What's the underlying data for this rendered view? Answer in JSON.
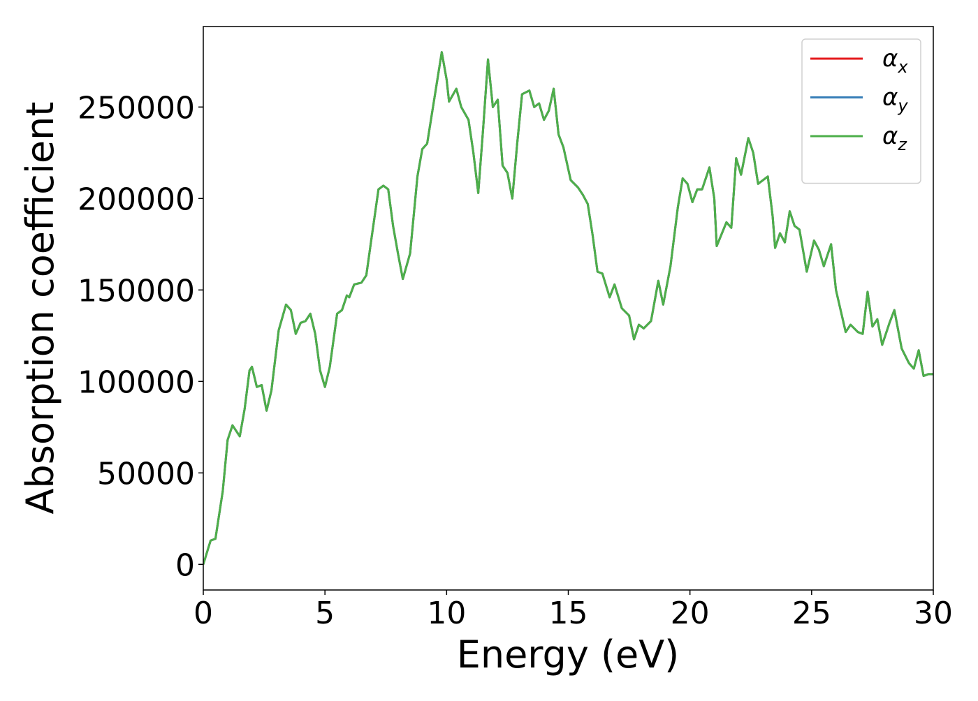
{
  "chart_data": {
    "type": "line",
    "xlabel": "Energy (eV)",
    "ylabel": "Absorption coefficient",
    "x": [
      0,
      0.3,
      0.5,
      0.8,
      1.0,
      1.2,
      1.5,
      1.7,
      1.9,
      2.0,
      2.2,
      2.4,
      2.6,
      2.8,
      3.1,
      3.4,
      3.6,
      3.8,
      4.0,
      4.2,
      4.4,
      4.6,
      4.8,
      5.0,
      5.2,
      5.5,
      5.7,
      5.9,
      6.0,
      6.2,
      6.5,
      6.7,
      6.9,
      7.2,
      7.4,
      7.6,
      7.8,
      8.0,
      8.2,
      8.5,
      8.8,
      9.0,
      9.2,
      9.5,
      9.8,
      10.0,
      10.1,
      10.4,
      10.6,
      10.9,
      11.1,
      11.3,
      11.5,
      11.7,
      11.9,
      12.1,
      12.3,
      12.5,
      12.7,
      12.9,
      13.1,
      13.4,
      13.6,
      13.8,
      14.0,
      14.2,
      14.4,
      14.6,
      14.8,
      15.1,
      15.4,
      15.6,
      15.8,
      16.0,
      16.2,
      16.4,
      16.7,
      16.9,
      17.2,
      17.5,
      17.7,
      17.9,
      18.1,
      18.4,
      18.7,
      18.9,
      19.2,
      19.5,
      19.7,
      19.9,
      20.1,
      20.3,
      20.5,
      20.8,
      21.0,
      21.1,
      21.5,
      21.7,
      21.9,
      22.1,
      22.4,
      22.6,
      22.8,
      23.0,
      23.2,
      23.4,
      23.5,
      23.7,
      23.9,
      24.1,
      24.3,
      24.5,
      24.8,
      25.1,
      25.3,
      25.5,
      25.8,
      26.0,
      26.4,
      26.6,
      26.9,
      27.1,
      27.3,
      27.5,
      27.7,
      27.9,
      28.2,
      28.4,
      28.7,
      29.0,
      29.2,
      29.4,
      29.6,
      29.8,
      30.0
    ],
    "series": [
      {
        "name": "αx",
        "color": "#e41a1c",
        "values": [
          0,
          13000,
          14000,
          40000,
          68000,
          76000,
          70000,
          85000,
          106000,
          108000,
          97000,
          98000,
          84000,
          95000,
          128000,
          142000,
          139000,
          126000,
          132000,
          133000,
          137000,
          126000,
          106000,
          97000,
          108000,
          137000,
          139000,
          147000,
          146000,
          153000,
          154000,
          158000,
          177000,
          205000,
          207000,
          205000,
          185000,
          170000,
          156000,
          170000,
          212000,
          227000,
          230000,
          255000,
          280000,
          265000,
          253000,
          260000,
          250000,
          243000,
          225000,
          203000,
          238000,
          276000,
          250000,
          254000,
          218000,
          214000,
          200000,
          230000,
          257000,
          259000,
          250000,
          252000,
          243000,
          248000,
          260000,
          235000,
          228000,
          210000,
          206000,
          202000,
          197000,
          180000,
          160000,
          159000,
          146000,
          153000,
          140000,
          136000,
          123000,
          131000,
          129000,
          133000,
          155000,
          142000,
          163000,
          195000,
          211000,
          208000,
          198000,
          205000,
          205000,
          217000,
          200000,
          174000,
          187000,
          184000,
          222000,
          213000,
          233000,
          225000,
          208000,
          210000,
          212000,
          190000,
          173000,
          181000,
          176000,
          193000,
          185000,
          183000,
          160000,
          177000,
          172000,
          163000,
          175000,
          150000,
          127000,
          131000,
          127000,
          126000,
          149000,
          130000,
          134000,
          120000,
          132000,
          139000,
          118000,
          110000,
          107000,
          117000,
          103000,
          104000,
          104000
        ]
      },
      {
        "name": "αy",
        "color": "#377eb8",
        "values": [
          0,
          13000,
          14000,
          40000,
          68000,
          76000,
          70000,
          85000,
          106000,
          108000,
          97000,
          98000,
          84000,
          95000,
          128000,
          142000,
          139000,
          126000,
          132000,
          133000,
          137000,
          126000,
          106000,
          97000,
          108000,
          137000,
          139000,
          147000,
          146000,
          153000,
          154000,
          158000,
          177000,
          205000,
          207000,
          205000,
          185000,
          170000,
          156000,
          170000,
          212000,
          227000,
          230000,
          255000,
          280000,
          265000,
          253000,
          260000,
          250000,
          243000,
          225000,
          203000,
          238000,
          276000,
          250000,
          254000,
          218000,
          214000,
          200000,
          230000,
          257000,
          259000,
          250000,
          252000,
          243000,
          248000,
          260000,
          235000,
          228000,
          210000,
          206000,
          202000,
          197000,
          180000,
          160000,
          159000,
          146000,
          153000,
          140000,
          136000,
          123000,
          131000,
          129000,
          133000,
          155000,
          142000,
          163000,
          195000,
          211000,
          208000,
          198000,
          205000,
          205000,
          217000,
          200000,
          174000,
          187000,
          184000,
          222000,
          213000,
          233000,
          225000,
          208000,
          210000,
          212000,
          190000,
          173000,
          181000,
          176000,
          193000,
          185000,
          183000,
          160000,
          177000,
          172000,
          163000,
          175000,
          150000,
          127000,
          131000,
          127000,
          126000,
          149000,
          130000,
          134000,
          120000,
          132000,
          139000,
          118000,
          110000,
          107000,
          117000,
          103000,
          104000,
          104000
        ]
      },
      {
        "name": "αz",
        "color": "#4daf4a",
        "values": [
          0,
          13000,
          14000,
          40000,
          68000,
          76000,
          70000,
          85000,
          106000,
          108000,
          97000,
          98000,
          84000,
          95000,
          128000,
          142000,
          139000,
          126000,
          132000,
          133000,
          137000,
          126000,
          106000,
          97000,
          108000,
          137000,
          139000,
          147000,
          146000,
          153000,
          154000,
          158000,
          177000,
          205000,
          207000,
          205000,
          185000,
          170000,
          156000,
          170000,
          212000,
          227000,
          230000,
          255000,
          280000,
          265000,
          253000,
          260000,
          250000,
          243000,
          225000,
          203000,
          238000,
          276000,
          250000,
          254000,
          218000,
          214000,
          200000,
          230000,
          257000,
          259000,
          250000,
          252000,
          243000,
          248000,
          260000,
          235000,
          228000,
          210000,
          206000,
          202000,
          197000,
          180000,
          160000,
          159000,
          146000,
          153000,
          140000,
          136000,
          123000,
          131000,
          129000,
          133000,
          155000,
          142000,
          163000,
          195000,
          211000,
          208000,
          198000,
          205000,
          205000,
          217000,
          200000,
          174000,
          187000,
          184000,
          222000,
          213000,
          233000,
          225000,
          208000,
          210000,
          212000,
          190000,
          173000,
          181000,
          176000,
          193000,
          185000,
          183000,
          160000,
          177000,
          172000,
          163000,
          175000,
          150000,
          127000,
          131000,
          127000,
          126000,
          149000,
          130000,
          134000,
          120000,
          132000,
          139000,
          118000,
          110000,
          107000,
          117000,
          103000,
          104000,
          104000
        ]
      }
    ],
    "xlim": [
      0,
      30
    ],
    "xticks": [
      0,
      5,
      10,
      15,
      20,
      25,
      30
    ],
    "ylim": [
      -14000,
      294000
    ],
    "yticks": [
      0,
      50000,
      100000,
      150000,
      200000,
      250000
    ],
    "grid": false,
    "legend": "upper right"
  }
}
